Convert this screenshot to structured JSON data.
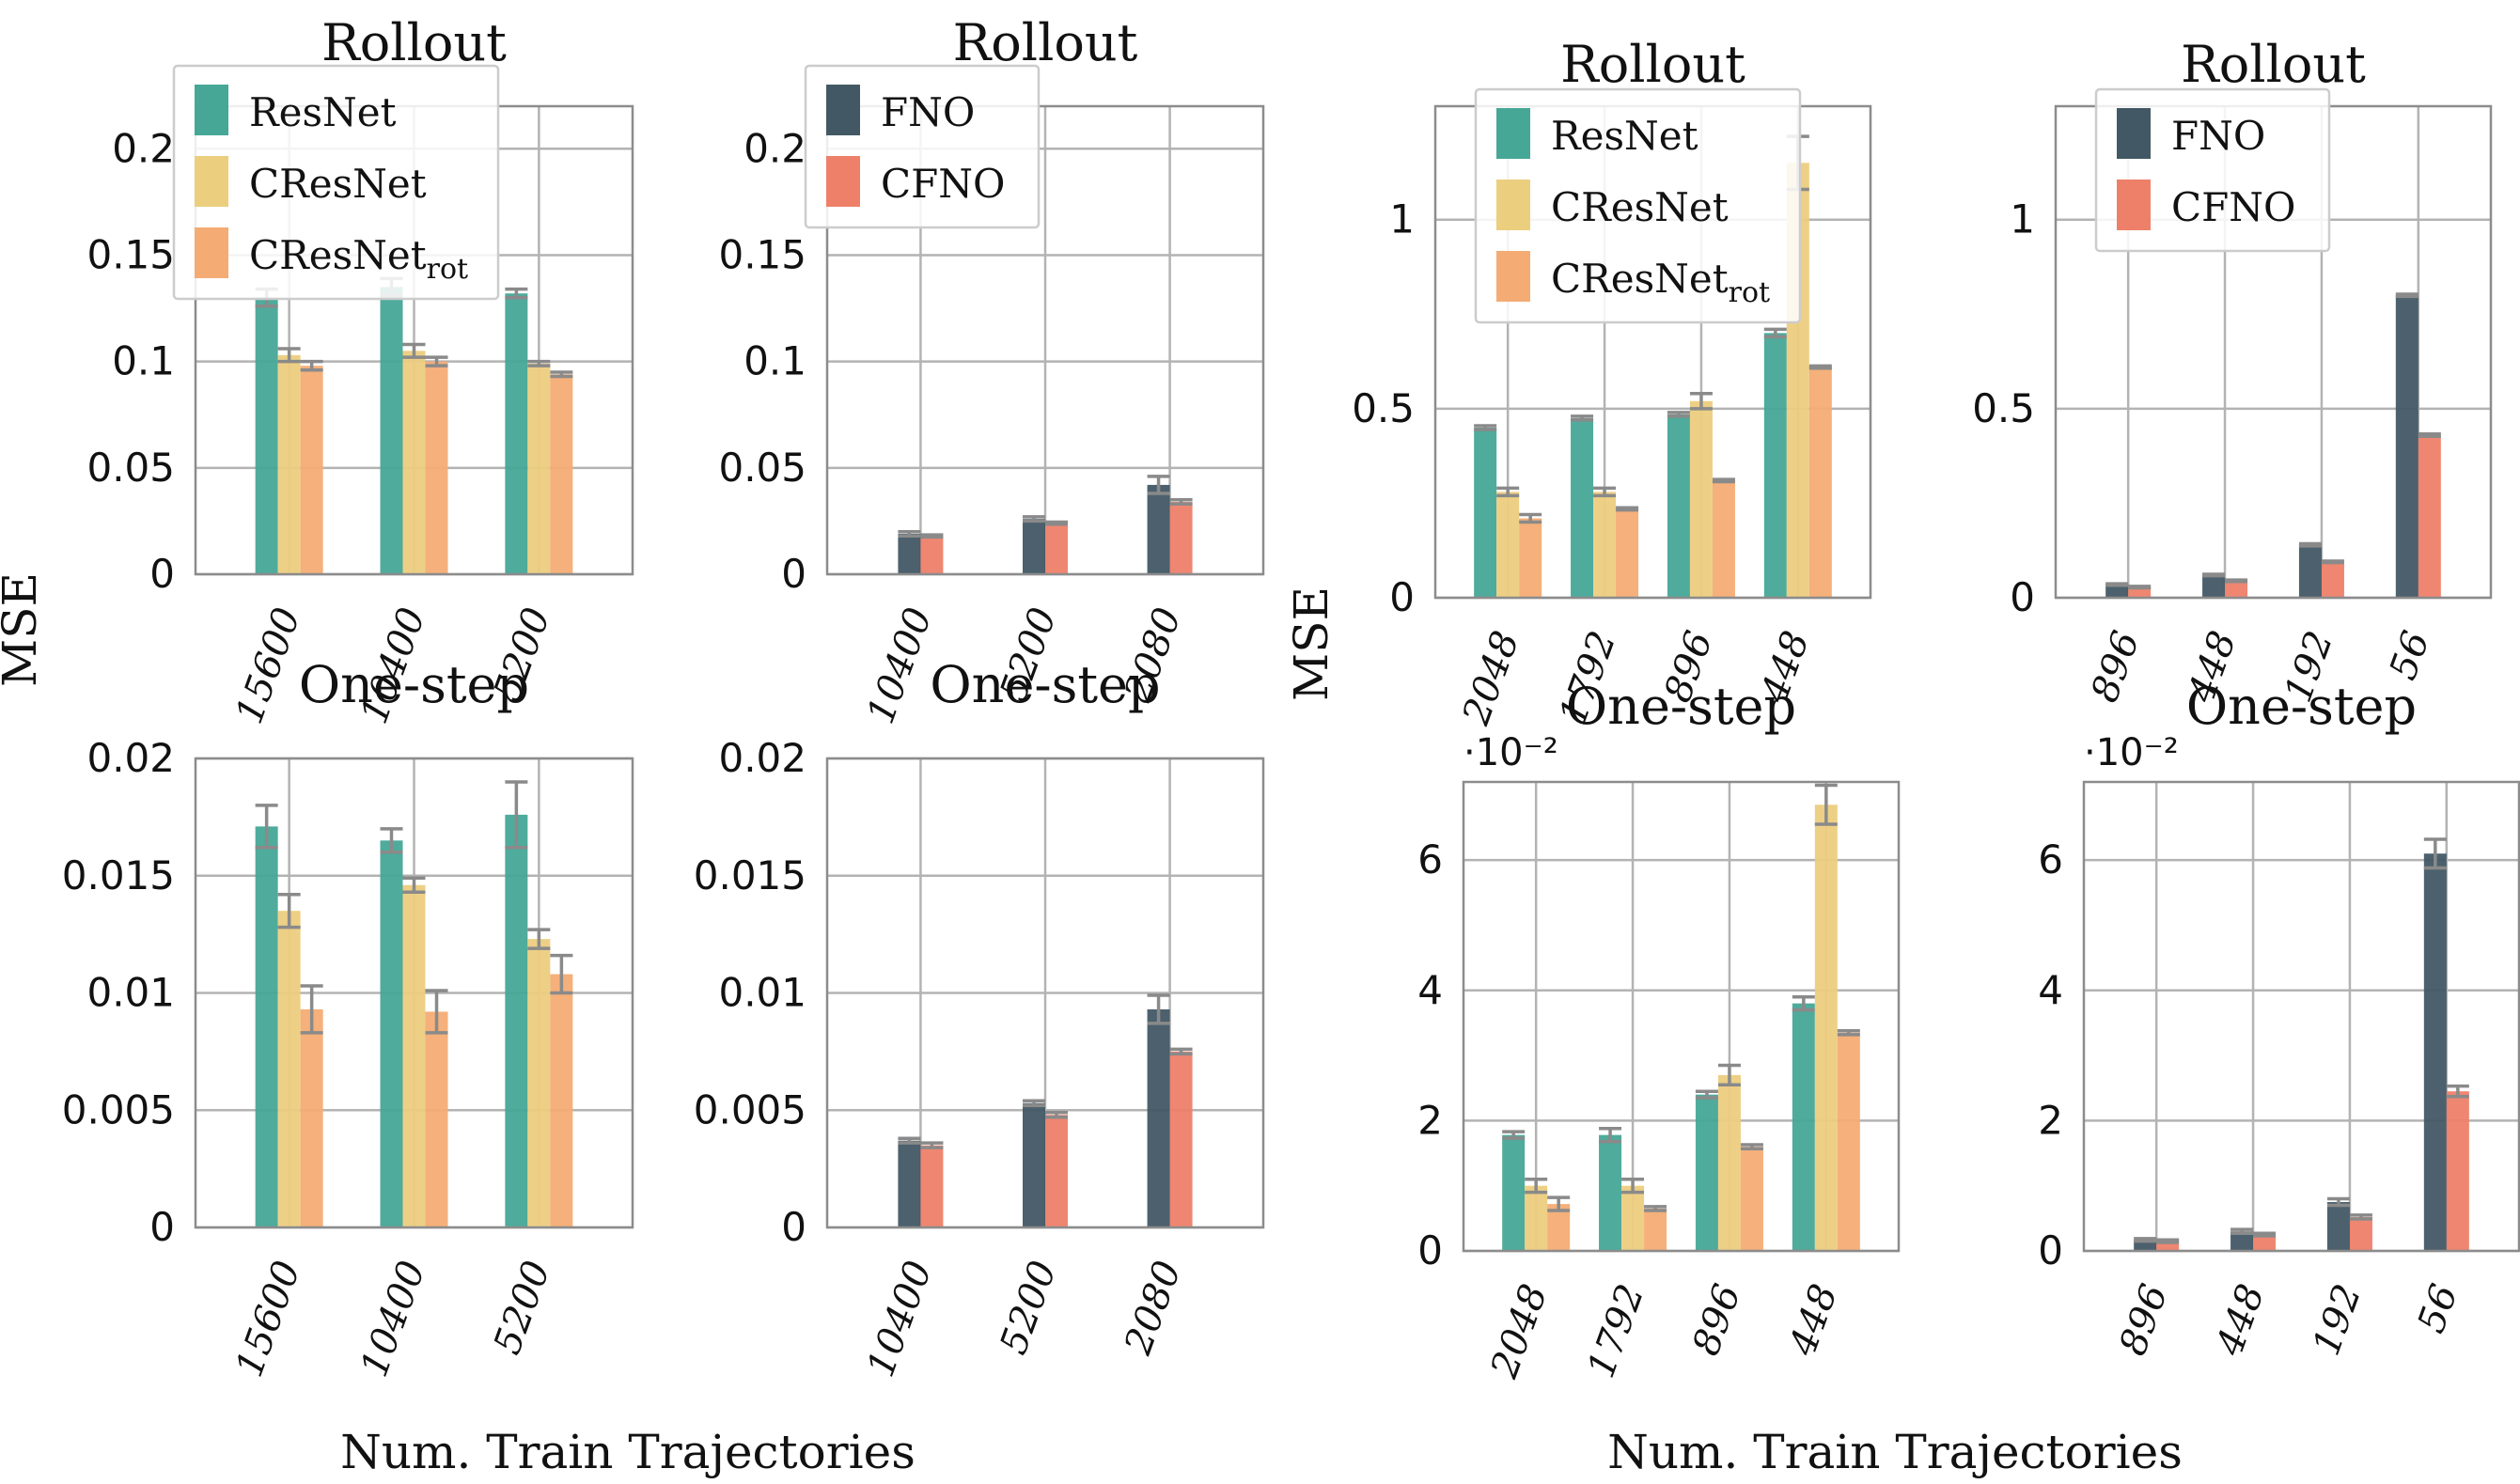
{
  "colors": {
    "ResNet": "#46a797",
    "CResNet": "#ecce7f",
    "CResNetrot": "#f4ac74",
    "FNO": "#425965",
    "CFNO": "#ee8069",
    "grid": "#b3b3b3",
    "axis": "#8c8c8c",
    "errorbar": "#8a8a8a"
  },
  "figure": {
    "left_ylabel": "MSE",
    "right_ylabel": "MSE",
    "left_xlabel": "Num. Train Trajectories",
    "right_xlabel": "Num. Train Trajectories"
  },
  "chart_data": [
    {
      "id": "A",
      "type": "bar",
      "title": "Rollout",
      "categories": [
        "15600",
        "10400",
        "5200"
      ],
      "ylim": [
        0,
        0.22
      ],
      "yticks": [
        0,
        0.05,
        0.1,
        0.15,
        0.2
      ],
      "ytick_labels": [
        "0",
        "0.05",
        "0.1",
        "0.15",
        "0.2"
      ],
      "scale_note": "",
      "legend": {
        "placement": "top-left",
        "entries": [
          {
            "name": "ResNet",
            "base": "ResNet",
            "sub": "",
            "color": "#46a797"
          },
          {
            "name": "CResNet",
            "base": "CResNet",
            "sub": "",
            "color": "#ecce7f"
          },
          {
            "name": "CResNetrot",
            "base": "CResNet",
            "sub": "rot",
            "color": "#f4ac74"
          }
        ]
      },
      "series": [
        {
          "name": "ResNet",
          "color": "#46a797",
          "values": [
            0.13,
            0.135,
            0.132
          ],
          "errors": [
            0.004,
            0.004,
            0.002
          ]
        },
        {
          "name": "CResNet",
          "color": "#ecce7f",
          "values": [
            0.103,
            0.105,
            0.099
          ],
          "errors": [
            0.003,
            0.003,
            0.001
          ]
        },
        {
          "name": "CResNetrot",
          "color": "#f4ac74",
          "values": [
            0.098,
            0.1,
            0.094
          ],
          "errors": [
            0.002,
            0.002,
            0.001
          ]
        }
      ]
    },
    {
      "id": "B",
      "type": "bar",
      "title": "Rollout",
      "categories": [
        "10400",
        "5200",
        "2080"
      ],
      "ylim": [
        0,
        0.22
      ],
      "yticks": [
        0,
        0.05,
        0.1,
        0.15,
        0.2
      ],
      "ytick_labels": [
        "0",
        "0.05",
        "0.1",
        "0.15",
        "0.2"
      ],
      "scale_note": "",
      "legend": {
        "placement": "top-left",
        "entries": [
          {
            "name": "FNO",
            "base": "FNO",
            "sub": "",
            "color": "#425965"
          },
          {
            "name": "CFNO",
            "base": "CFNO",
            "sub": "",
            "color": "#ee8069"
          }
        ]
      },
      "series": [
        {
          "name": "FNO",
          "color": "#425965",
          "values": [
            0.019,
            0.026,
            0.042
          ],
          "errors": [
            0.001,
            0.001,
            0.004
          ]
        },
        {
          "name": "CFNO",
          "color": "#ee8069",
          "values": [
            0.018,
            0.024,
            0.034
          ],
          "errors": [
            0.0005,
            0.0005,
            0.001
          ]
        }
      ]
    },
    {
      "id": "C",
      "type": "bar",
      "title": "One-step",
      "categories": [
        "15600",
        "10400",
        "5200"
      ],
      "ylim": [
        0,
        0.02
      ],
      "yticks": [
        0,
        0.005,
        0.01,
        0.015,
        0.02
      ],
      "ytick_labels": [
        "0",
        "0.005",
        "0.01",
        "0.015",
        "0.02"
      ],
      "scale_note": "",
      "legend": null,
      "series": [
        {
          "name": "ResNet",
          "color": "#46a797",
          "values": [
            0.0171,
            0.0165,
            0.0176
          ],
          "errors": [
            0.0009,
            0.0005,
            0.0014
          ]
        },
        {
          "name": "CResNet",
          "color": "#ecce7f",
          "values": [
            0.0135,
            0.0146,
            0.0123
          ],
          "errors": [
            0.0007,
            0.0003,
            0.0004
          ]
        },
        {
          "name": "CResNetrot",
          "color": "#f4ac74",
          "values": [
            0.0093,
            0.0092,
            0.0108
          ],
          "errors": [
            0.001,
            0.0009,
            0.0008
          ]
        }
      ]
    },
    {
      "id": "D",
      "type": "bar",
      "title": "One-step",
      "categories": [
        "10400",
        "5200",
        "2080"
      ],
      "ylim": [
        0,
        0.02
      ],
      "yticks": [
        0,
        0.005,
        0.01,
        0.015,
        0.02
      ],
      "ytick_labels": [
        "0",
        "0.005",
        "0.01",
        "0.015",
        "0.02"
      ],
      "scale_note": "",
      "legend": null,
      "series": [
        {
          "name": "FNO",
          "color": "#425965",
          "values": [
            0.0037,
            0.0053,
            0.0093
          ],
          "errors": [
            0.0001,
            0.0001,
            0.0006
          ]
        },
        {
          "name": "CFNO",
          "color": "#ee8069",
          "values": [
            0.0035,
            0.0048,
            0.0075
          ],
          "errors": [
            0.0001,
            0.0001,
            0.0001
          ]
        }
      ]
    },
    {
      "id": "E",
      "type": "bar",
      "title": "Rollout",
      "categories": [
        "2048",
        "1792",
        "896",
        "448"
      ],
      "ylim": [
        0,
        1.3
      ],
      "yticks": [
        0,
        0.5,
        1
      ],
      "ytick_labels": [
        "0",
        "0.5",
        "1"
      ],
      "scale_note": "",
      "legend": {
        "placement": "top-left",
        "entries": [
          {
            "name": "ResNet",
            "base": "ResNet",
            "sub": "",
            "color": "#46a797"
          },
          {
            "name": "CResNet",
            "base": "CResNet",
            "sub": "",
            "color": "#ecce7f"
          },
          {
            "name": "CResNetrot",
            "base": "CResNet",
            "sub": "rot",
            "color": "#f4ac74"
          }
        ]
      },
      "series": [
        {
          "name": "ResNet",
          "color": "#46a797",
          "values": [
            0.45,
            0.475,
            0.485,
            0.7
          ],
          "errors": [
            0.005,
            0.005,
            0.005,
            0.01
          ]
        },
        {
          "name": "CResNet",
          "color": "#ecce7f",
          "values": [
            0.28,
            0.28,
            0.52,
            1.15
          ],
          "errors": [
            0.01,
            0.01,
            0.02,
            0.07
          ]
        },
        {
          "name": "CResNetrot",
          "color": "#f4ac74",
          "values": [
            0.21,
            0.235,
            0.31,
            0.61
          ],
          "errors": [
            0.01,
            0.003,
            0.003,
            0.003
          ]
        }
      ]
    },
    {
      "id": "F",
      "type": "bar",
      "title": "Rollout",
      "categories": [
        "896",
        "448",
        "192",
        "56"
      ],
      "ylim": [
        0,
        1.3
      ],
      "yticks": [
        0,
        0.5,
        1
      ],
      "ytick_labels": [
        "0",
        "0.5",
        "1"
      ],
      "scale_note": "",
      "legend": {
        "placement": "top-left",
        "entries": [
          {
            "name": "FNO",
            "base": "FNO",
            "sub": "",
            "color": "#425965"
          },
          {
            "name": "CFNO",
            "base": "CFNO",
            "sub": "",
            "color": "#ee8069"
          }
        ]
      },
      "series": [
        {
          "name": "FNO",
          "color": "#425965",
          "values": [
            0.035,
            0.06,
            0.14,
            0.8
          ],
          "errors": [
            0.002,
            0.002,
            0.003,
            0.003
          ]
        },
        {
          "name": "CFNO",
          "color": "#ee8069",
          "values": [
            0.028,
            0.045,
            0.095,
            0.43
          ],
          "errors": [
            0.002,
            0.002,
            0.002,
            0.003
          ]
        }
      ]
    },
    {
      "id": "G",
      "type": "bar",
      "title": "One-step",
      "categories": [
        "2048",
        "1792",
        "896",
        "448"
      ],
      "ylim": [
        0,
        7.2
      ],
      "yticks": [
        0,
        2,
        4,
        6
      ],
      "ytick_labels": [
        "0",
        "2",
        "4",
        "6"
      ],
      "scale_note": "·10⁻²",
      "legend": null,
      "series": [
        {
          "name": "ResNet",
          "color": "#46a797",
          "values": [
            1.78,
            1.78,
            2.4,
            3.8
          ],
          "errors": [
            0.05,
            0.1,
            0.05,
            0.1
          ]
        },
        {
          "name": "CResNet",
          "color": "#ecce7f",
          "values": [
            1.0,
            1.0,
            2.7,
            6.85
          ],
          "errors": [
            0.1,
            0.1,
            0.15,
            0.3
          ]
        },
        {
          "name": "CResNetrot",
          "color": "#f4ac74",
          "values": [
            0.72,
            0.65,
            1.6,
            3.35
          ],
          "errors": [
            0.1,
            0.03,
            0.03,
            0.03
          ]
        }
      ]
    },
    {
      "id": "H",
      "type": "bar",
      "title": "One-step",
      "categories": [
        "896",
        "448",
        "192",
        "56"
      ],
      "ylim": [
        0,
        7.2
      ],
      "yticks": [
        0,
        2,
        4,
        6
      ],
      "ytick_labels": [
        "0",
        "2",
        "4",
        "6"
      ],
      "scale_note": "·10⁻²",
      "legend": null,
      "series": [
        {
          "name": "FNO",
          "color": "#425965",
          "values": [
            0.17,
            0.3,
            0.75,
            6.1
          ],
          "errors": [
            0.02,
            0.03,
            0.05,
            0.22
          ]
        },
        {
          "name": "CFNO",
          "color": "#ee8069",
          "values": [
            0.15,
            0.25,
            0.52,
            2.45
          ],
          "errors": [
            0.02,
            0.02,
            0.03,
            0.08
          ]
        }
      ]
    }
  ]
}
